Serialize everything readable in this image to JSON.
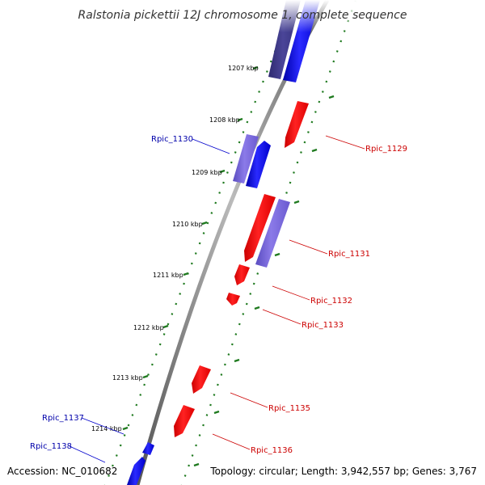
{
  "title": "Ralstonia pickettii 12J chromosome 1, complete sequence",
  "footer": {
    "accession": "Accession: NC_010682",
    "summary": "Topology: circular; Length: 3,942,557 bp; Genes: 3,767"
  },
  "colors": {
    "forward_gene": "#0000ff",
    "reverse_gene": "#ff0000",
    "forward_other": "#7b68d8",
    "dark_feature": "#3f3a8a",
    "backbone": "#8a8a8a",
    "tick": "#1f7a1f",
    "forward_label": "#0000aa",
    "reverse_label": "#cc0000"
  },
  "kbp_labels": [
    "1207 kbp",
    "1208 kbp",
    "1209 kbp",
    "1210 kbp",
    "1211 kbp",
    "1212 kbp",
    "1213 kbp",
    "1214 kbp"
  ],
  "gene_labels": {
    "rpic_1129": "Rpic_1129",
    "rpic_1130": "Rpic_1130",
    "rpic_1131": "Rpic_1131",
    "rpic_1132": "Rpic_1132",
    "rpic_1133": "Rpic_1133",
    "rpic_1135": "Rpic_1135",
    "rpic_1136": "Rpic_1136",
    "rpic_1137": "Rpic_1137",
    "rpic_1138": "Rpic_1138"
  }
}
